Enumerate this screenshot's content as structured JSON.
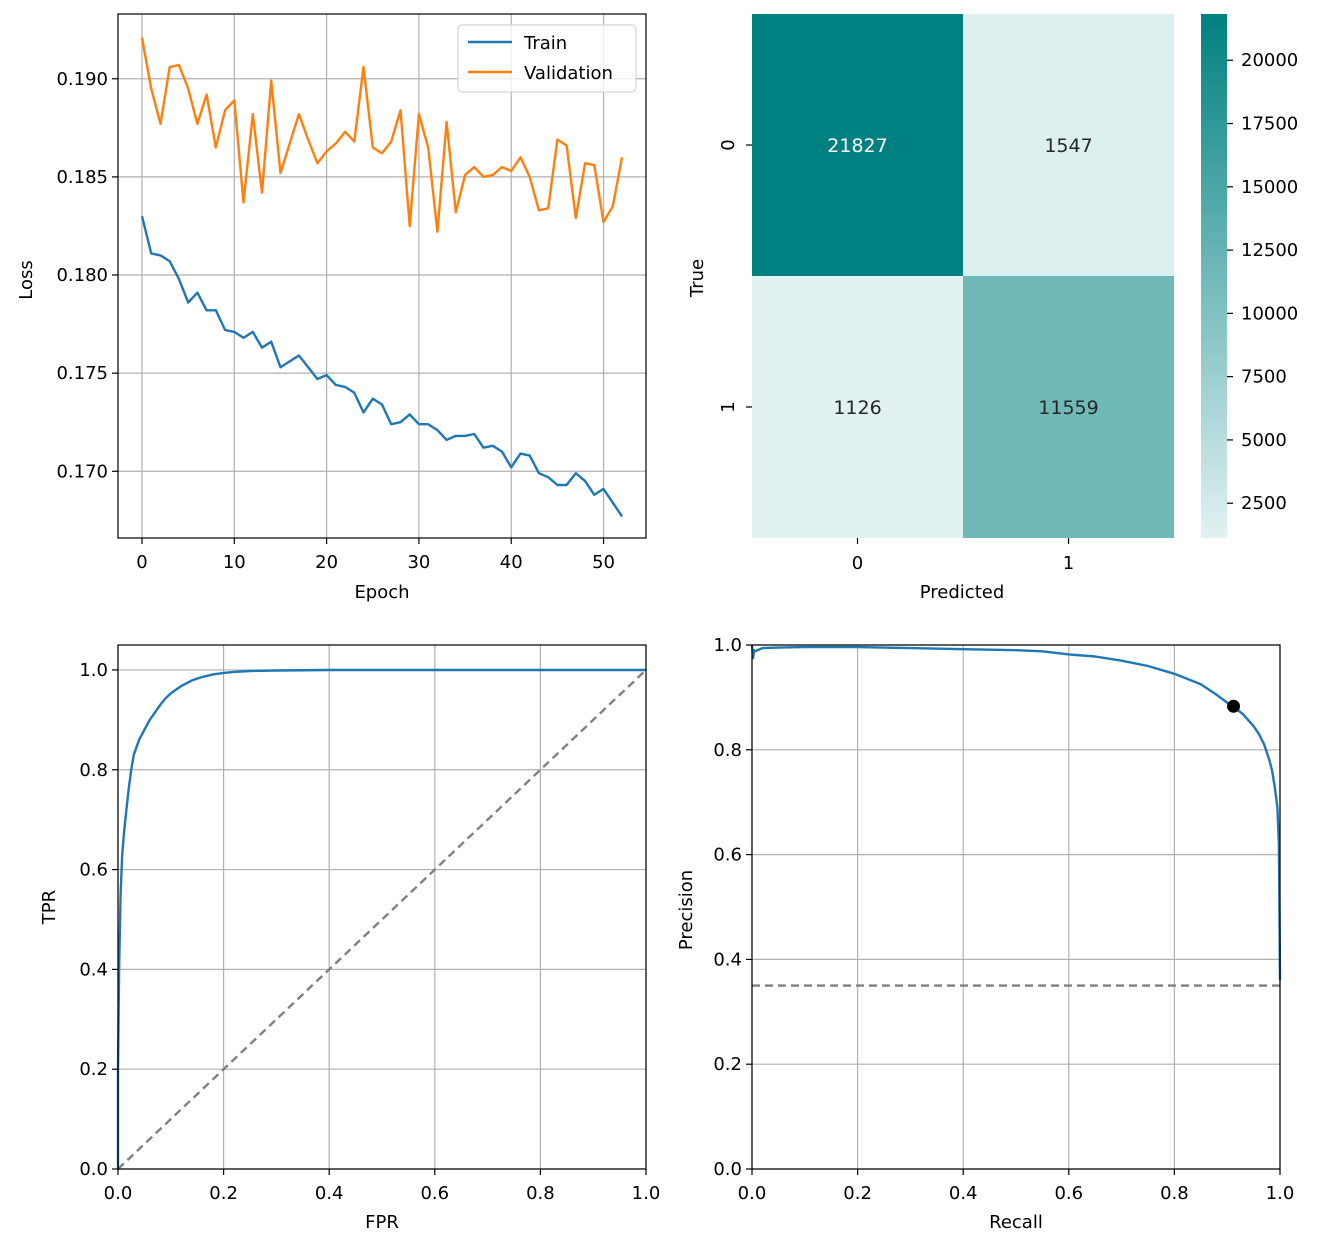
{
  "chart_data": [
    {
      "type": "line",
      "xlabel": "Epoch",
      "ylabel": "Loss",
      "xlim": [
        -2.6,
        54.6
      ],
      "ylim": [
        0.1666,
        0.1933
      ],
      "xticks": [
        0,
        10,
        20,
        30,
        40,
        50
      ],
      "xtick_labels": [
        "0",
        "10",
        "20",
        "30",
        "40",
        "50"
      ],
      "yticks": [
        0.17,
        0.175,
        0.18,
        0.185,
        0.19
      ],
      "ytick_labels": [
        "0.170",
        "0.175",
        "0.180",
        "0.185",
        "0.190"
      ],
      "grid": true,
      "legend_position": "top-right",
      "x": [
        0,
        1,
        2,
        3,
        4,
        5,
        6,
        7,
        8,
        9,
        10,
        11,
        12,
        13,
        14,
        15,
        16,
        17,
        18,
        19,
        20,
        21,
        22,
        23,
        24,
        25,
        26,
        27,
        28,
        29,
        30,
        31,
        32,
        33,
        34,
        35,
        36,
        37,
        38,
        39,
        40,
        41,
        42,
        43,
        44,
        45,
        46,
        47,
        48,
        49,
        50,
        51,
        52
      ],
      "series": [
        {
          "name": "Train",
          "color": "#1f77b4",
          "values": [
            0.183,
            0.1811,
            0.181,
            0.1807,
            0.1798,
            0.1786,
            0.1791,
            0.1782,
            0.1782,
            0.1772,
            0.1771,
            0.1768,
            0.1771,
            0.1763,
            0.1766,
            0.1753,
            0.1756,
            0.1759,
            0.1753,
            0.1747,
            0.1749,
            0.1744,
            0.1743,
            0.174,
            0.173,
            0.1737,
            0.1734,
            0.1724,
            0.1725,
            0.1729,
            0.1724,
            0.1724,
            0.1721,
            0.1716,
            0.1718,
            0.1718,
            0.1719,
            0.1712,
            0.1713,
            0.171,
            0.1702,
            0.1709,
            0.1708,
            0.1699,
            0.1697,
            0.1693,
            0.1693,
            0.1699,
            0.1695,
            0.1688,
            0.1691,
            0.1684,
            0.1677
          ]
        },
        {
          "name": "Validation",
          "color": "#ff7f0e",
          "values": [
            0.1921,
            0.1895,
            0.1877,
            0.1906,
            0.1907,
            0.1895,
            0.1877,
            0.1892,
            0.1865,
            0.1884,
            0.1889,
            0.1837,
            0.1882,
            0.1842,
            0.1899,
            0.1852,
            0.1867,
            0.1882,
            0.1869,
            0.1857,
            0.1863,
            0.1867,
            0.1873,
            0.1868,
            0.1906,
            0.1865,
            0.1862,
            0.1868,
            0.1884,
            0.1825,
            0.1882,
            0.1865,
            0.1822,
            0.1878,
            0.1832,
            0.1851,
            0.1855,
            0.185,
            0.1851,
            0.1855,
            0.1853,
            0.186,
            0.185,
            0.1833,
            0.1834,
            0.1869,
            0.1866,
            0.1829,
            0.1857,
            0.1856,
            0.1827,
            0.1835,
            0.186
          ]
        }
      ]
    },
    {
      "type": "heatmap",
      "xlabel": "Predicted",
      "ylabel": "True",
      "x_categories": [
        "0",
        "1"
      ],
      "y_categories": [
        "0",
        "1"
      ],
      "values": [
        [
          21827,
          1547
        ],
        [
          1126,
          11559
        ]
      ],
      "value_labels": [
        [
          "21827",
          "1547"
        ],
        [
          "1126",
          "11559"
        ]
      ],
      "colorbar_ticks": [
        2500,
        5000,
        7500,
        10000,
        12500,
        15000,
        17500,
        20000
      ],
      "colorbar_tick_labels": [
        "2500",
        "5000",
        "7500",
        "10000",
        "12500",
        "15000",
        "17500",
        "20000"
      ],
      "colorbar_range": [
        1126,
        21827
      ],
      "colormap": [
        "#e2f2f2",
        "#008080"
      ],
      "annotation_colors": {
        "dark": "#262626",
        "light": "#ffffff"
      }
    },
    {
      "type": "line",
      "xlabel": "FPR",
      "ylabel": "TPR",
      "xlim": [
        0,
        1
      ],
      "ylim": [
        0,
        1.05
      ],
      "xticks": [
        0,
        0.2,
        0.4,
        0.6,
        0.8,
        1.0
      ],
      "xtick_labels": [
        "0.0",
        "0.2",
        "0.4",
        "0.6",
        "0.8",
        "1.0"
      ],
      "yticks": [
        0,
        0.2,
        0.4,
        0.6,
        0.8,
        1.0
      ],
      "ytick_labels": [
        "0.0",
        "0.2",
        "0.4",
        "0.6",
        "0.8",
        "1.0"
      ],
      "grid": true,
      "series": [
        {
          "color": "#1f77b4",
          "x": [
            0,
            0,
            0.002,
            0.005,
            0.008,
            0.012,
            0.016,
            0.02,
            0.025,
            0.03,
            0.04,
            0.05,
            0.06,
            0.07,
            0.08,
            0.09,
            0.1,
            0.12,
            0.14,
            0.16,
            0.18,
            0.2,
            0.22,
            0.25,
            0.3,
            0.4,
            0.6,
            1.0
          ],
          "y": [
            0,
            0.2,
            0.4,
            0.55,
            0.63,
            0.68,
            0.72,
            0.76,
            0.8,
            0.83,
            0.86,
            0.88,
            0.9,
            0.915,
            0.93,
            0.943,
            0.953,
            0.968,
            0.979,
            0.986,
            0.991,
            0.994,
            0.996,
            0.998,
            0.999,
            1.0,
            1.0,
            1.0
          ]
        },
        {
          "color": "#808080",
          "style": "dashed",
          "x": [
            0,
            1
          ],
          "y": [
            0,
            1
          ]
        }
      ]
    },
    {
      "type": "line",
      "xlabel": "Recall",
      "ylabel": "Precision",
      "xlim": [
        0,
        1
      ],
      "ylim": [
        0,
        1
      ],
      "xticks": [
        0,
        0.2,
        0.4,
        0.6,
        0.8,
        1.0
      ],
      "xtick_labels": [
        "0.0",
        "0.2",
        "0.4",
        "0.6",
        "0.8",
        "1.0"
      ],
      "yticks": [
        0,
        0.2,
        0.4,
        0.6,
        0.8,
        1.0
      ],
      "ytick_labels": [
        "0.0",
        "0.2",
        "0.4",
        "0.6",
        "0.8",
        "1.0"
      ],
      "grid": true,
      "series": [
        {
          "color": "#1f77b4",
          "x": [
            0,
            0.002,
            0.004,
            0.006,
            0.01,
            0.02,
            0.05,
            0.1,
            0.2,
            0.3,
            0.4,
            0.5,
            0.55,
            0.6,
            0.65,
            0.7,
            0.75,
            0.8,
            0.85,
            0.88,
            0.9,
            0.915,
            0.93,
            0.95,
            0.96,
            0.97,
            0.98,
            0.985,
            0.99,
            0.995,
            0.998,
            1.0
          ],
          "y": [
            1.0,
            0.975,
            0.99,
            0.988,
            0.99,
            0.994,
            0.995,
            0.996,
            0.996,
            0.994,
            0.992,
            0.99,
            0.988,
            0.982,
            0.978,
            0.97,
            0.96,
            0.945,
            0.925,
            0.905,
            0.89,
            0.88,
            0.868,
            0.845,
            0.83,
            0.81,
            0.78,
            0.76,
            0.73,
            0.69,
            0.62,
            0.36
          ]
        },
        {
          "color": "#808080",
          "style": "dashed",
          "x": [
            0,
            1
          ],
          "y": [
            0.35,
            0.35
          ]
        }
      ],
      "marker": {
        "x": 0.912,
        "y": 0.883,
        "color": "#000000"
      }
    }
  ]
}
